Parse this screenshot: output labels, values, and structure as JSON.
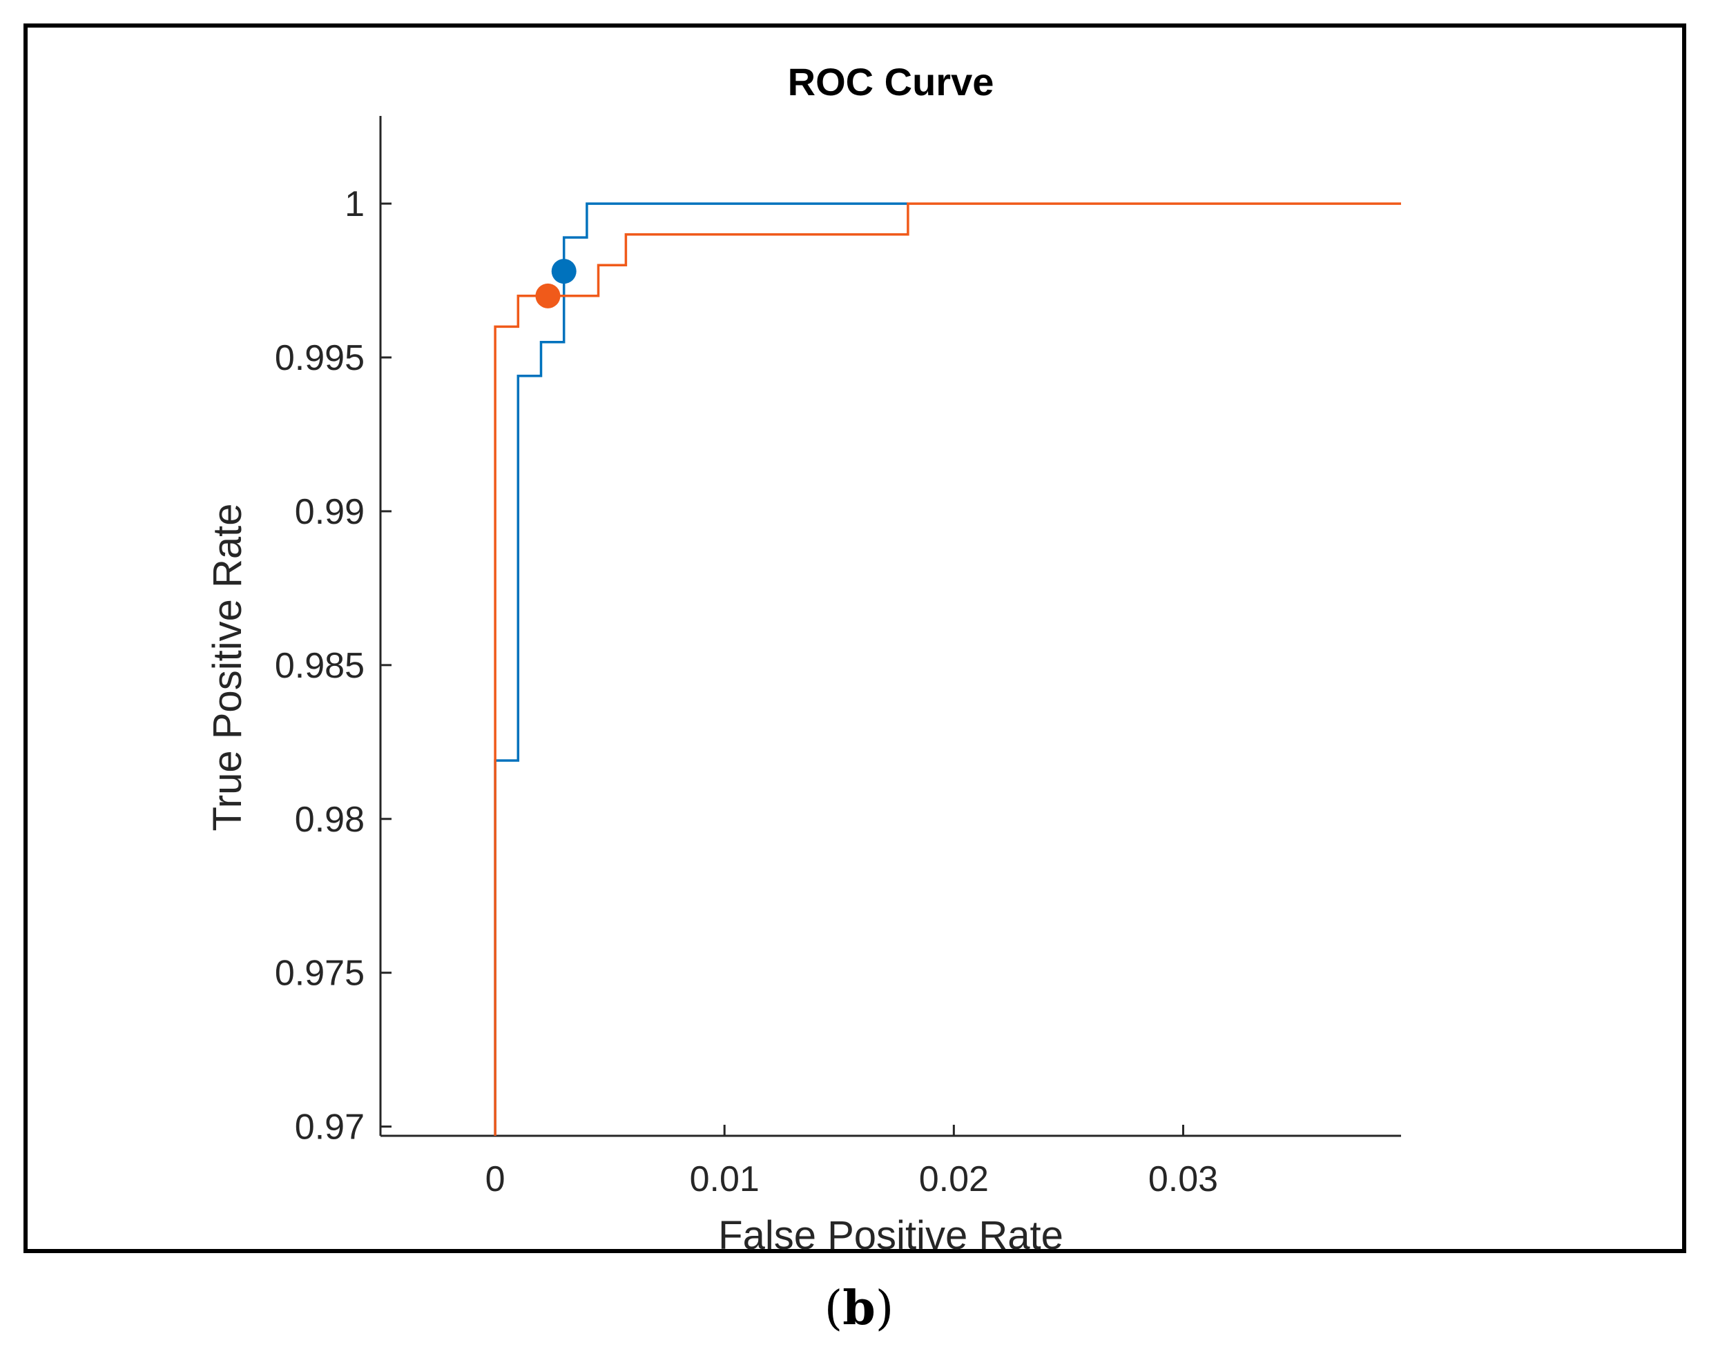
{
  "chart_data": {
    "type": "line",
    "title": "ROC Curve",
    "xlabel": "False Positive Rate",
    "ylabel": "True Positive Rate",
    "xlim": [
      -0.005,
      0.0395
    ],
    "ylim": [
      0.9697,
      1.00285
    ],
    "xticks": [
      0,
      0.01,
      0.02,
      0.03
    ],
    "xtick_labels": [
      "0",
      "0.01",
      "0.02",
      "0.03"
    ],
    "yticks": [
      0.97,
      0.975,
      0.98,
      0.985,
      0.99,
      0.995,
      1
    ],
    "ytick_labels": [
      "0.97",
      "0.975",
      "0.98",
      "0.985",
      "0.99",
      "0.995",
      "1"
    ],
    "grid": false,
    "series": [
      {
        "name": "blue-curve",
        "color": "#0072BD",
        "x": [
          0,
          0,
          0.001,
          0.001,
          0.002,
          0.002,
          0.003,
          0.003,
          0.004,
          0.004,
          0.018
        ],
        "y": [
          0.9697,
          0.9819,
          0.9819,
          0.9944,
          0.9944,
          0.9955,
          0.9955,
          0.9989,
          0.9989,
          1.0,
          1.0
        ],
        "operating_point": [
          0.003,
          0.9978
        ]
      },
      {
        "name": "orange-curve",
        "color": "#F05A1A",
        "x": [
          0,
          0,
          0.001,
          0.001,
          0.0023,
          0.0023,
          0.0045,
          0.0045,
          0.0057,
          0.0057,
          0.018,
          0.018,
          0.0395
        ],
        "y": [
          0.9697,
          0.996,
          0.996,
          0.997,
          0.997,
          0.997,
          0.997,
          0.998,
          0.998,
          0.999,
          0.999,
          1.0,
          1.0
        ],
        "operating_point": [
          0.0023,
          0.997
        ]
      }
    ]
  },
  "caption": {
    "open": "(",
    "letter": "b",
    "close": ")"
  }
}
